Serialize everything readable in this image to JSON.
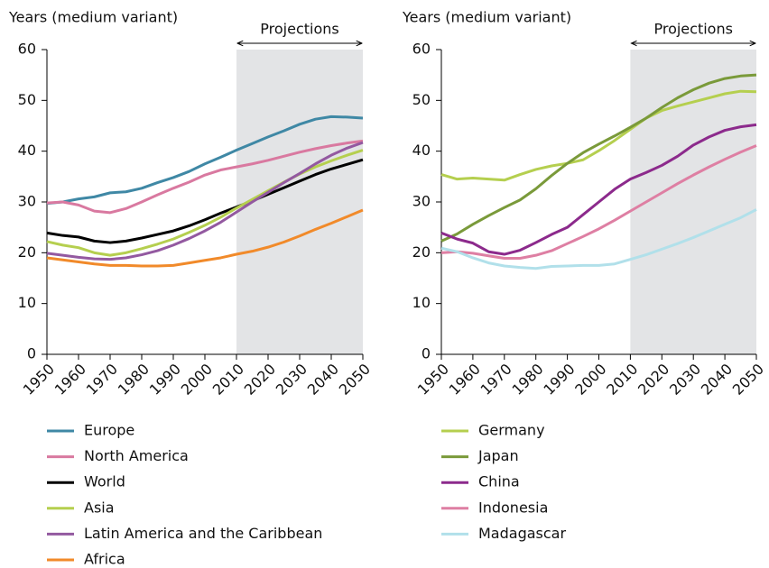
{
  "chart_data": [
    {
      "type": "line",
      "y_label": "Years (medium variant)",
      "projection_label": "Projections",
      "projection_range": [
        2010,
        2050
      ],
      "x": [
        1950,
        1955,
        1960,
        1965,
        1970,
        1975,
        1980,
        1985,
        1990,
        1995,
        2000,
        2005,
        2010,
        2015,
        2020,
        2025,
        2030,
        2035,
        2040,
        2045,
        2050
      ],
      "xlim": [
        1950,
        2050
      ],
      "xticks": [
        1950,
        1960,
        1970,
        1980,
        1990,
        2000,
        2010,
        2020,
        2030,
        2040,
        2050
      ],
      "ylim": [
        0,
        60
      ],
      "yticks": [
        0,
        10,
        20,
        30,
        40,
        50,
        60
      ],
      "series": [
        {
          "name": "Europe",
          "color": "#3f88a5",
          "values": [
            29.7,
            30.0,
            30.6,
            31.0,
            31.8,
            32.0,
            32.7,
            33.8,
            34.8,
            36.0,
            37.5,
            38.8,
            40.2,
            41.5,
            42.8,
            44.0,
            45.3,
            46.3,
            46.8,
            46.7,
            46.5
          ]
        },
        {
          "name": "North America",
          "color": "#d979a0",
          "values": [
            29.8,
            30.0,
            29.4,
            28.2,
            27.9,
            28.7,
            30.0,
            31.4,
            32.7,
            33.9,
            35.3,
            36.3,
            36.9,
            37.5,
            38.2,
            39.0,
            39.8,
            40.5,
            41.1,
            41.6,
            42.0
          ]
        },
        {
          "name": "World",
          "color": "#000000",
          "values": [
            23.9,
            23.4,
            23.1,
            22.3,
            22.0,
            22.3,
            22.9,
            23.6,
            24.3,
            25.3,
            26.5,
            27.8,
            29.0,
            30.2,
            31.5,
            32.8,
            34.1,
            35.4,
            36.5,
            37.4,
            38.3
          ]
        },
        {
          "name": "Asia",
          "color": "#b5cf4f",
          "values": [
            22.2,
            21.5,
            21.0,
            20.0,
            19.5,
            20.0,
            20.8,
            21.7,
            22.7,
            24.0,
            25.4,
            27.0,
            28.8,
            30.5,
            32.2,
            33.9,
            35.5,
            36.9,
            38.1,
            39.2,
            40.2
          ]
        },
        {
          "name": "Latin America and the Caribbean",
          "color": "#9359a0",
          "values": [
            19.9,
            19.5,
            19.1,
            18.8,
            18.7,
            19.0,
            19.6,
            20.4,
            21.5,
            22.8,
            24.3,
            26.0,
            28.0,
            30.0,
            31.9,
            33.8,
            35.6,
            37.5,
            39.2,
            40.6,
            41.7
          ]
        },
        {
          "name": "Africa",
          "color": "#f18a2a",
          "values": [
            19.0,
            18.6,
            18.2,
            17.8,
            17.5,
            17.5,
            17.4,
            17.4,
            17.5,
            18.0,
            18.5,
            19.0,
            19.7,
            20.3,
            21.1,
            22.1,
            23.3,
            24.6,
            25.8,
            27.1,
            28.4
          ]
        }
      ]
    },
    {
      "type": "line",
      "y_label": "Years (medium variant)",
      "projection_label": "Projections",
      "projection_range": [
        2010,
        2050
      ],
      "x": [
        1950,
        1955,
        1960,
        1965,
        1970,
        1975,
        1980,
        1985,
        1990,
        1995,
        2000,
        2005,
        2010,
        2015,
        2020,
        2025,
        2030,
        2035,
        2040,
        2045,
        2050
      ],
      "xlim": [
        1950,
        2050
      ],
      "xticks": [
        1950,
        1960,
        1970,
        1980,
        1990,
        2000,
        2010,
        2020,
        2030,
        2040,
        2050
      ],
      "ylim": [
        0,
        60
      ],
      "yticks": [
        0,
        10,
        20,
        30,
        40,
        50,
        60
      ],
      "series": [
        {
          "name": "Germany",
          "color": "#b5cf4f",
          "values": [
            35.4,
            34.5,
            34.7,
            34.5,
            34.3,
            35.4,
            36.4,
            37.1,
            37.6,
            38.3,
            40.1,
            42.1,
            44.3,
            46.5,
            48.0,
            48.9,
            49.7,
            50.5,
            51.3,
            51.8,
            51.7
          ]
        },
        {
          "name": "Japan",
          "color": "#7a9a3a",
          "values": [
            22.3,
            23.7,
            25.6,
            27.3,
            28.9,
            30.4,
            32.6,
            35.2,
            37.6,
            39.7,
            41.4,
            43.0,
            44.7,
            46.5,
            48.6,
            50.5,
            52.1,
            53.4,
            54.3,
            54.8,
            55.0
          ]
        },
        {
          "name": "China",
          "color": "#8c2a8c",
          "values": [
            23.9,
            22.7,
            21.9,
            20.2,
            19.7,
            20.5,
            22.0,
            23.6,
            25.0,
            27.5,
            30.0,
            32.5,
            34.5,
            35.8,
            37.2,
            39.0,
            41.2,
            42.8,
            44.1,
            44.8,
            45.2
          ]
        },
        {
          "name": "Indonesia",
          "color": "#de7fa3",
          "values": [
            20.0,
            20.2,
            19.9,
            19.4,
            18.9,
            18.9,
            19.5,
            20.4,
            21.8,
            23.2,
            24.7,
            26.4,
            28.2,
            30.0,
            31.8,
            33.6,
            35.3,
            36.9,
            38.4,
            39.8,
            41.1
          ]
        },
        {
          "name": "Madagascar",
          "color": "#b1e0ea",
          "values": [
            20.9,
            20.2,
            19.0,
            18.0,
            17.4,
            17.1,
            16.9,
            17.3,
            17.4,
            17.5,
            17.5,
            17.8,
            18.7,
            19.6,
            20.7,
            21.8,
            23.0,
            24.3,
            25.6,
            26.9,
            28.5
          ]
        }
      ]
    }
  ]
}
